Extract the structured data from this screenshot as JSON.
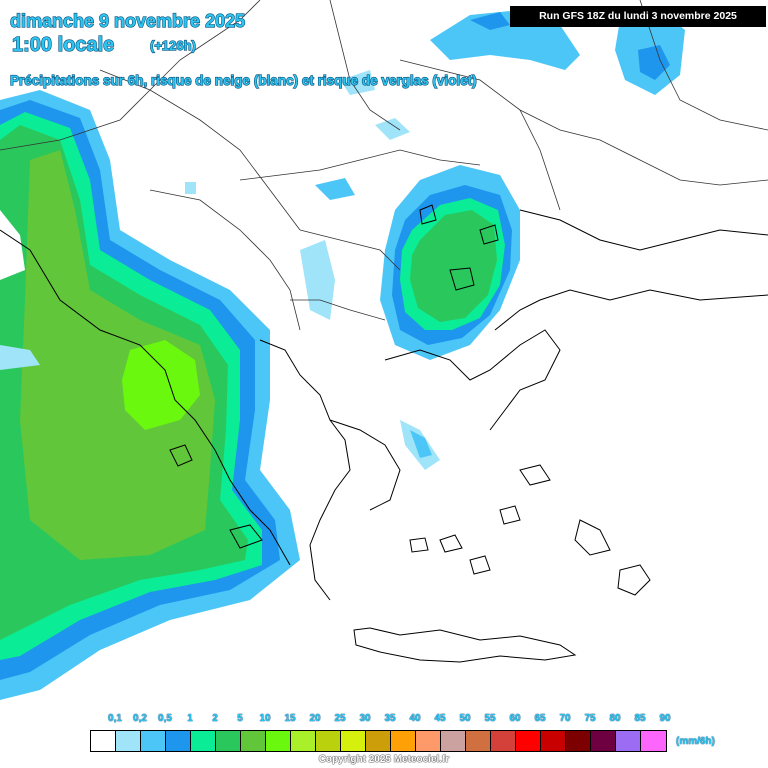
{
  "header": {
    "date_line": "dimanche 9 novembre 2025",
    "time_line": "1:00 locale",
    "lead_time": "(+126h)",
    "subtitle": "Précipitations sur 6h, risque de neige (blanc) et risque de verglas (violet)"
  },
  "run_info": "Run GFS 18Z du lundi 3 novembre 2025",
  "legend": {
    "unit": "(mm/6h)",
    "labels": [
      "0,1",
      "0,2",
      "0,5",
      "1",
      "2",
      "5",
      "10",
      "15",
      "20",
      "25",
      "30",
      "35",
      "40",
      "45",
      "50",
      "55",
      "60",
      "65",
      "70",
      "75",
      "80",
      "85",
      "90"
    ],
    "colors": [
      "#ffffff",
      "#a0e4fa",
      "#4cc6f6",
      "#1e96ee",
      "#0aec96",
      "#2ac85c",
      "#62c63a",
      "#6af80e",
      "#aaf02a",
      "#bad20e",
      "#d6f00e",
      "#cc9e0a",
      "#fea006",
      "#fe9a6a",
      "#cca2a0",
      "#d07040",
      "#d4403a",
      "#fe0000",
      "#c80000",
      "#7c0000",
      "#6e0042",
      "#9c6cf2",
      "#fc66fc"
    ]
  },
  "copyright": "Copyright 2025 Meteociel.fr"
}
